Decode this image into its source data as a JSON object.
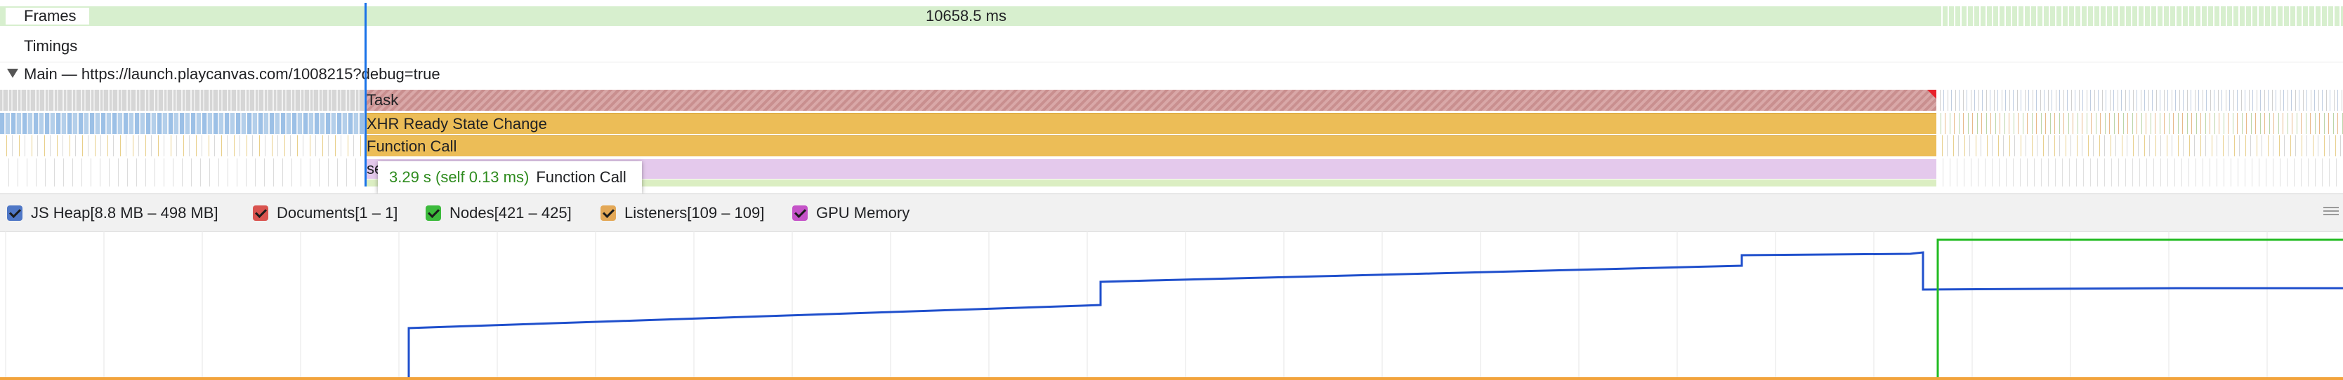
{
  "frames": {
    "label": "Frames",
    "duration": "10658.5 ms"
  },
  "timings": {
    "label": "Timings"
  },
  "main": {
    "label": "Main — https://launch.playcanvas.com/1008215?debug=true",
    "slices": [
      {
        "name": "Task"
      },
      {
        "name": "XHR Ready State Change"
      },
      {
        "name": "Function Call"
      },
      {
        "name": "se"
      }
    ]
  },
  "tooltip": {
    "time": "3.29 s (self 0.13 ms)",
    "name": "Function Call"
  },
  "counters": [
    {
      "label": "JS Heap[8.8 MB – 498 MB]",
      "color": "#4f77c6",
      "checked": true
    },
    {
      "label": "Documents[1 – 1]",
      "color": "#d9534f",
      "checked": true
    },
    {
      "label": "Nodes[421 – 425]",
      "color": "#3cba3c",
      "checked": true
    },
    {
      "label": "Listeners[109 – 109]",
      "color": "#e3a857",
      "checked": true
    },
    {
      "label": "GPU Memory",
      "color": "#c553c8",
      "checked": true
    }
  ],
  "colors": {
    "accent": "#1a73e8",
    "js_heap_line": "#1f4fcc",
    "nodes_line": "#22bb22",
    "listeners_line": "#f2a33c",
    "task": "#d4a0a0",
    "xhr": "#ecbd57",
    "script": "#e4c9ec"
  },
  "icons": [
    "disclosure-triangle-icon",
    "checkbox-icon",
    "drag-handle-icon"
  ]
}
